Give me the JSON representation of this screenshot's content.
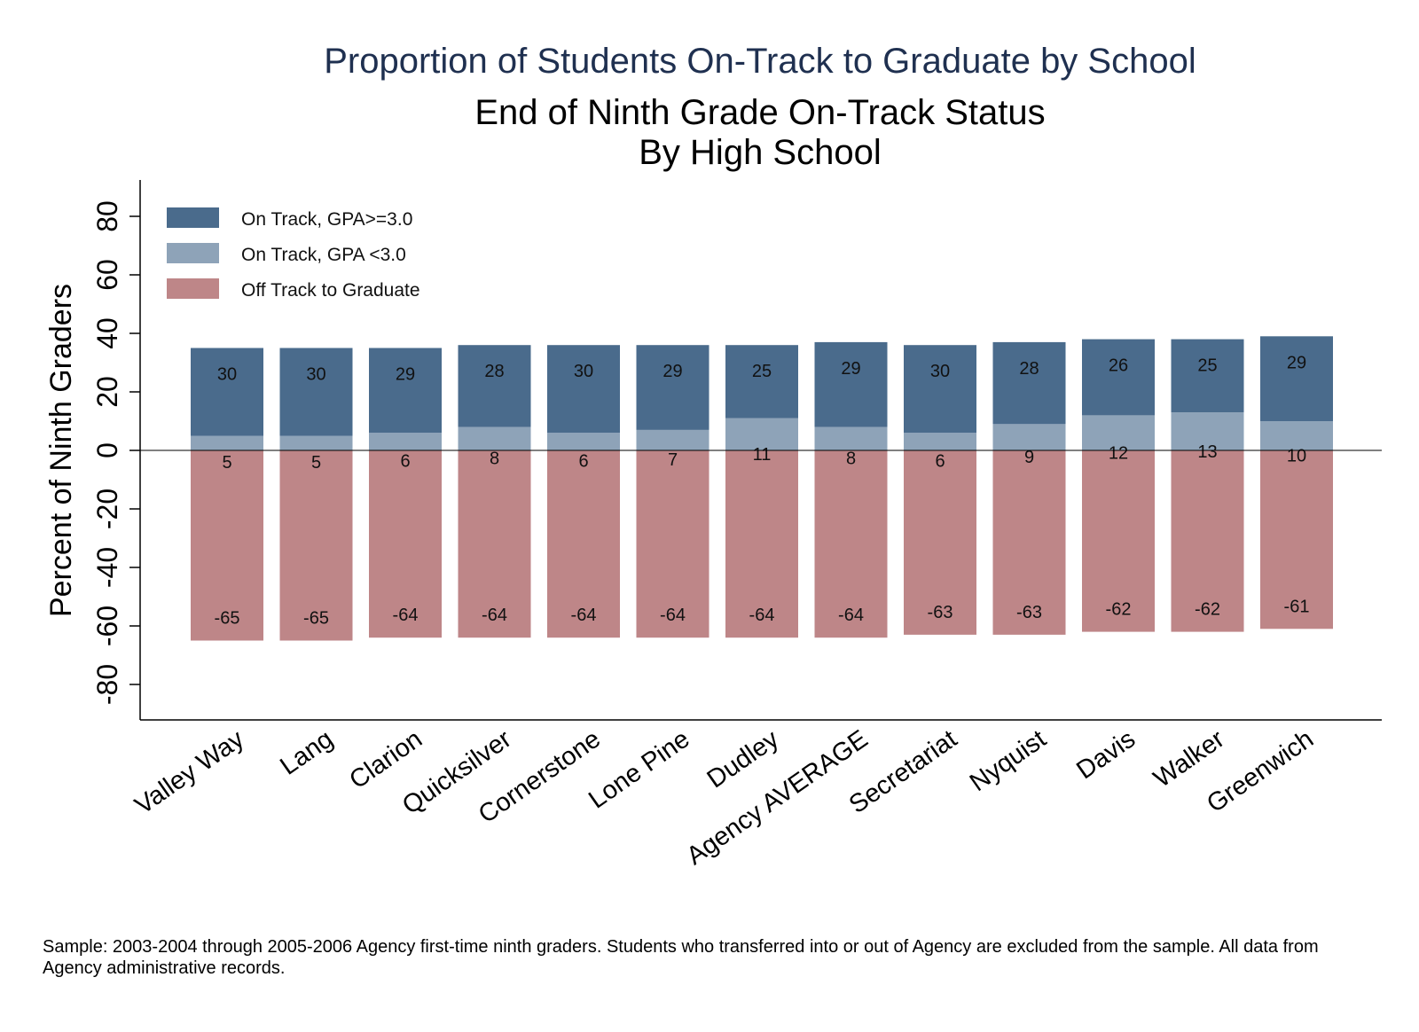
{
  "chart_data": {
    "type": "bar",
    "stacked": true,
    "title": "Proportion of Students On-Track to Graduate by School",
    "subtitle_lines": [
      "End of Ninth Grade On-Track Status",
      "By High School"
    ],
    "ylabel": "Percent of Ninth Graders",
    "xlabel": "",
    "ylim": [
      -92,
      92
    ],
    "yticks": [
      -80,
      -60,
      -40,
      -20,
      0,
      20,
      40,
      60,
      80
    ],
    "grid": false,
    "legend_placement": "top-left",
    "categories": [
      "Valley Way",
      "Lang",
      "Clarion",
      "Quicksilver",
      "Cornerstone",
      "Lone Pine",
      "Dudley",
      "Agency AVERAGE",
      "Secretariat",
      "Nyquist",
      "Davis",
      "Walker",
      "Greenwich"
    ],
    "series": [
      {
        "name": "On Track, GPA>=3.0",
        "color": "#4a6b8c",
        "values": [
          30,
          30,
          29,
          28,
          30,
          29,
          25,
          29,
          30,
          28,
          26,
          25,
          29
        ]
      },
      {
        "name": "On Track, GPA <3.0",
        "color": "#8ea3b8",
        "values": [
          5,
          5,
          6,
          8,
          6,
          7,
          11,
          8,
          6,
          9,
          12,
          13,
          10
        ]
      },
      {
        "name": "Off Track to Graduate",
        "color": "#be8688",
        "values": [
          -65,
          -65,
          -64,
          -64,
          -64,
          -64,
          -64,
          -64,
          -63,
          -63,
          -62,
          -62,
          -61
        ]
      }
    ]
  },
  "footnote": "Sample: 2003-2004 through 2005-2006 Agency first-time ninth graders. Students who transferred into or out of Agency are excluded from the sample. All data from Agency administrative records."
}
